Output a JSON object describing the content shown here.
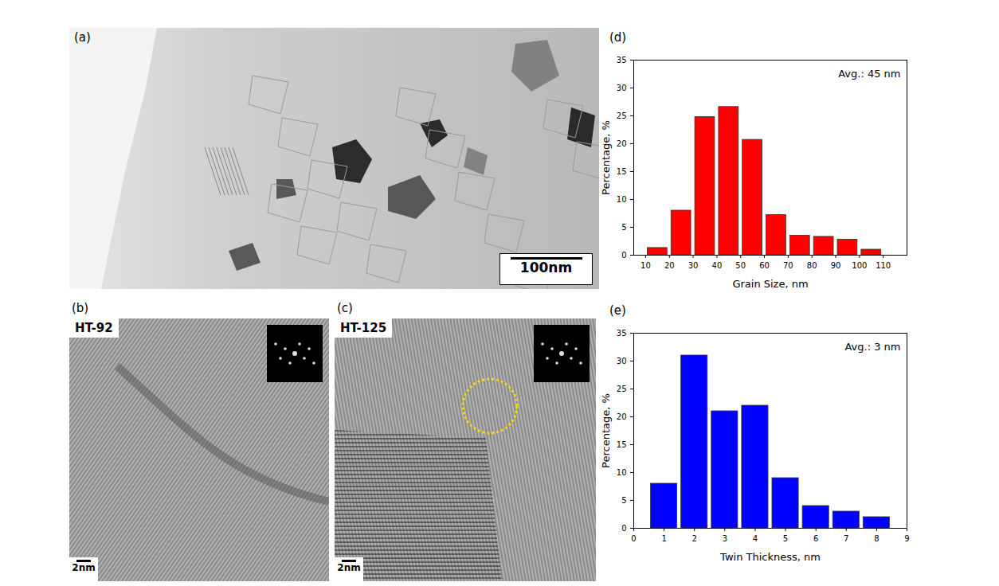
{
  "images": [
    {
      "label": "(a)",
      "scale_bar": "100nm"
    },
    {
      "label": "(b)",
      "sample": "HT-92",
      "scale_bar": "2nm"
    },
    {
      "label": "(c)",
      "sample": "HT-125",
      "scale_bar": "2nm"
    }
  ],
  "chart_data": [
    {
      "type": "histogram",
      "title": "(d)",
      "x_label": "Grain Size, nm",
      "y_label": "Percentage, %",
      "bins": [
        10,
        20,
        30,
        40,
        50,
        60,
        70,
        80,
        90,
        100,
        110
      ],
      "values": [
        1.3,
        8,
        24.8,
        26.6,
        20.7,
        7.2,
        3.5,
        3.3,
        2.8,
        1.0
      ],
      "color": "#ff0000",
      "xlim": [
        5,
        120
      ],
      "xticks": [
        10,
        20,
        30,
        40,
        50,
        60,
        70,
        80,
        90,
        100,
        110
      ],
      "ylim": [
        0,
        35
      ],
      "yticks": [
        0,
        5,
        10,
        15,
        20,
        25,
        30,
        35
      ],
      "annotations": [
        "Avg.: 45 nm"
      ]
    },
    {
      "type": "histogram",
      "title": "(e)",
      "x_label": "Twin Thickness, nm",
      "y_label": "Percentage, %",
      "bins": [
        0.5,
        1.5,
        2.5,
        3.5,
        4.5,
        5.5,
        6.5,
        7.5,
        8.5
      ],
      "values": [
        8,
        31,
        21,
        22,
        9,
        4,
        3,
        2
      ],
      "color": "#0000ff",
      "xlim": [
        0,
        9
      ],
      "xticks": [
        0,
        1,
        2,
        3,
        4,
        5,
        6,
        7,
        8,
        9
      ],
      "ylim": [
        0,
        35
      ],
      "yticks": [
        0,
        5,
        10,
        15,
        20,
        25,
        30,
        35
      ],
      "annotations": [
        "Avg.: 3 nm"
      ]
    }
  ]
}
